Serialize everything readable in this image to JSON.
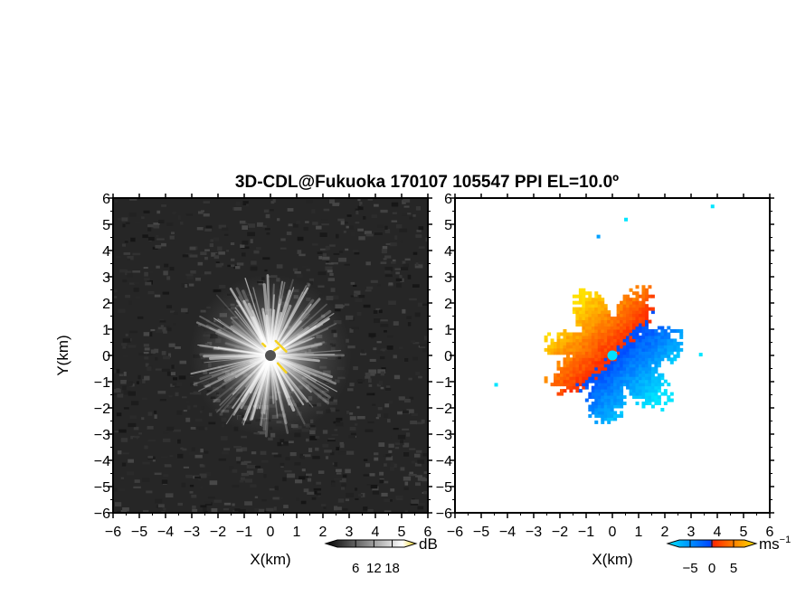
{
  "title": "3D-CDL@Fukuoka 170107 105547 PPI EL=10.0º",
  "colors": {
    "axis": "#000000",
    "reflectivity_background": "#262626",
    "reflectivity_center": "#ffffff",
    "radar_site_marker": "#505050",
    "velocity_site_marker": "#00e0ff",
    "clutter_highlight": "#f5d21e"
  },
  "chart_data": [
    {
      "type": "heatmap",
      "name": "reflectivity",
      "xlabel": "X(km)",
      "ylabel": "Y(km)",
      "xlim": [
        -6,
        6
      ],
      "ylim": [
        -6,
        6
      ],
      "xticks": [
        -6,
        -5,
        -4,
        -3,
        -2,
        -1,
        0,
        1,
        2,
        3,
        4,
        5,
        6
      ],
      "yticks": [
        -6,
        -5,
        -4,
        -3,
        -2,
        -1,
        0,
        1,
        2,
        3,
        4,
        5,
        6
      ],
      "site": [
        0,
        0
      ],
      "echo_radius_km": 3,
      "colorbar": {
        "unit": "dB",
        "ticks": [
          "6",
          "12",
          "18"
        ],
        "range": [
          0,
          22
        ],
        "colors": [
          "#000000",
          "#ffffff",
          "#f5d21e"
        ]
      }
    },
    {
      "type": "heatmap",
      "name": "doppler-velocity",
      "xlabel": "X(km)",
      "xlim": [
        -6,
        6
      ],
      "ylim": [
        -6,
        6
      ],
      "xticks": [
        -6,
        -5,
        -4,
        -3,
        -2,
        -1,
        0,
        1,
        2,
        3,
        4,
        5,
        6
      ],
      "yticks": [
        -6,
        -5,
        -4,
        -3,
        -2,
        -1,
        0,
        1,
        2,
        3,
        4,
        5,
        6
      ],
      "site": [
        0,
        0
      ],
      "echo_radius_km": 2.6,
      "colorbar": {
        "unit": "ms",
        "unit_exp": "−1",
        "ticks": [
          "−5",
          "0",
          "5"
        ],
        "range": [
          -7.5,
          7.5
        ],
        "colors": [
          "#00e5ff",
          "#0047ff",
          "#ff2a00",
          "#ffe100"
        ]
      }
    }
  ]
}
